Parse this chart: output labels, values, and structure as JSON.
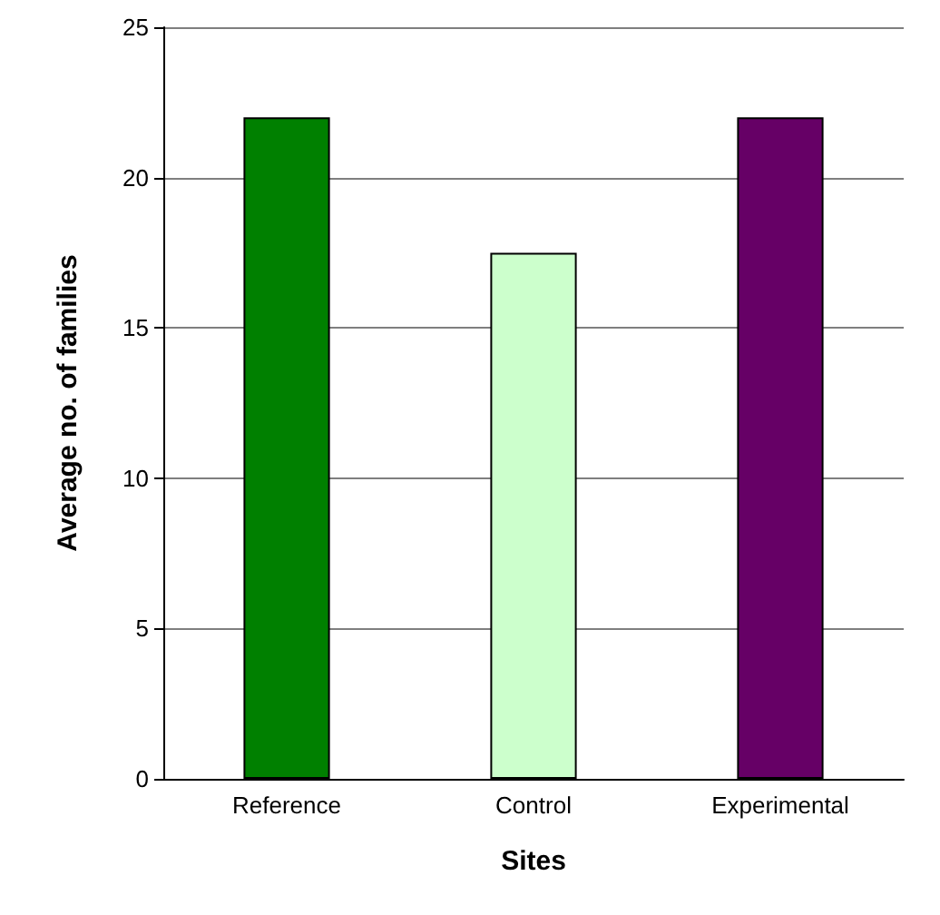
{
  "chart_data": {
    "type": "bar",
    "xlabel": "Sites",
    "ylabel": "Average no. of families",
    "categories": [
      "Reference",
      "Control",
      "Experimental"
    ],
    "values": [
      22,
      17.5,
      22
    ],
    "colors": [
      "#008000",
      "#ccffcc",
      "#660066"
    ],
    "ylim": [
      0,
      25
    ],
    "yticks": [
      0,
      5,
      10,
      15,
      20,
      25
    ],
    "grid": "y"
  }
}
